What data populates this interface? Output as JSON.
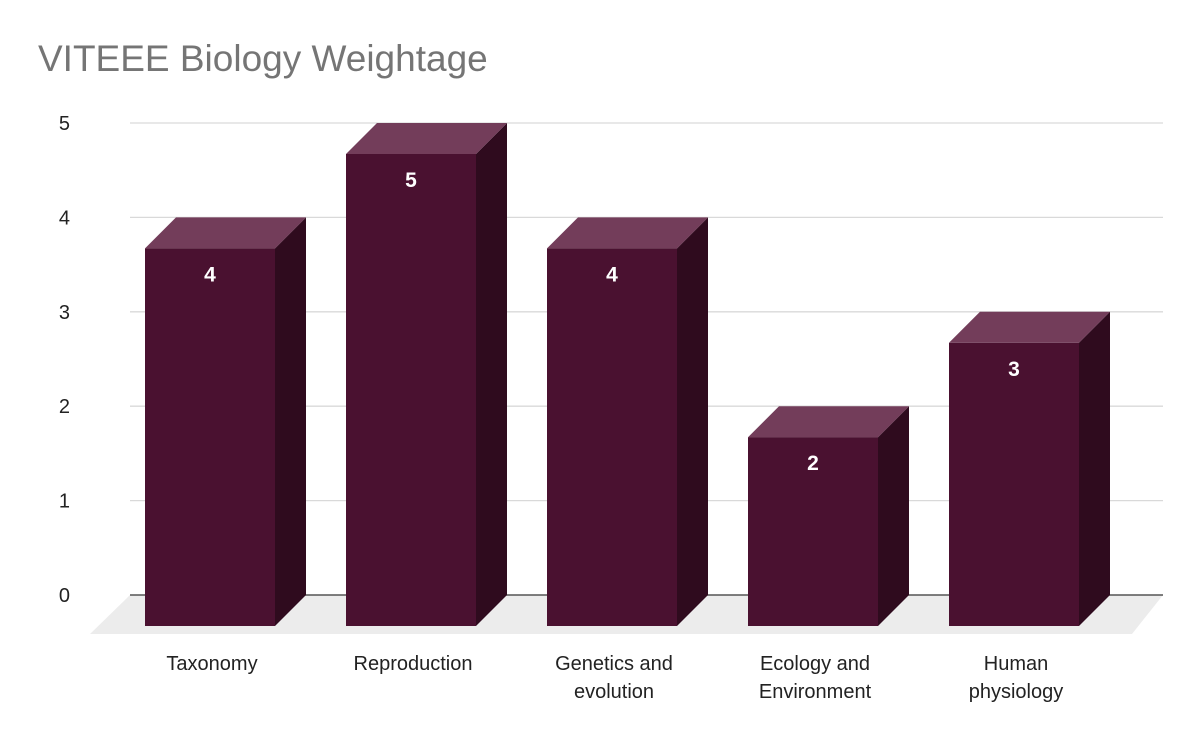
{
  "chart_data": {
    "type": "bar",
    "title": "VITEEE Biology Weightage",
    "categories": [
      "Taxonomy",
      "Reproduction",
      "Genetics and evolution",
      "Ecology and Environment",
      "Human physiology"
    ],
    "category_lines": [
      [
        "Taxonomy"
      ],
      [
        "Reproduction"
      ],
      [
        "Genetics and",
        "evolution"
      ],
      [
        "Ecology and",
        "Environment"
      ],
      [
        "Human",
        "physiology"
      ]
    ],
    "values": [
      4,
      5,
      4,
      2,
      3
    ],
    "data_labels": [
      "4",
      "5",
      "4",
      "2",
      "3"
    ],
    "yticks": [
      0,
      1,
      2,
      3,
      4,
      5
    ],
    "ylim": [
      0,
      5
    ],
    "xlabel": "",
    "ylabel": "",
    "grid": true,
    "style": "3d-column",
    "colors": {
      "bar_front": "#4a1130",
      "bar_top": "#733d5a",
      "bar_side": "#2f0b1e",
      "grid": "#d9d9d9",
      "floor": "#ececec",
      "axis": "#555555"
    }
  }
}
